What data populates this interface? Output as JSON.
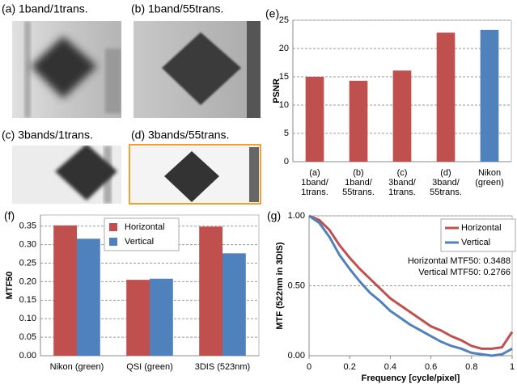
{
  "image_panels": [
    {
      "label": "(a) 1band/1trans."
    },
    {
      "label": "(b) 1band/55trans."
    },
    {
      "label": "(c) 3bands/1trans."
    },
    {
      "label": "(d) 3bands/55trans."
    }
  ],
  "chart_data": [
    {
      "type": "bar",
      "label": "(e)",
      "y_label": "PSNR",
      "categories": [
        "(a)\n1band/\n1trans.",
        "(b)\n1band/\n55trans.",
        "(c)\n3band/\n1trans.",
        "(d)\n3band/\n55trans.",
        "Nikon\n(green)"
      ],
      "values": [
        15.0,
        14.3,
        16.1,
        22.8,
        23.3
      ],
      "colors": [
        "#c0504d",
        "#c0504d",
        "#c0504d",
        "#c0504d",
        "#4f81bd"
      ],
      "ylim": [
        0,
        25
      ],
      "yticks": [
        0,
        5,
        10,
        15,
        20,
        25
      ],
      "grid": true
    },
    {
      "type": "bar",
      "label": "(f)",
      "y_label": "MTF50",
      "categories": [
        "Nikon (green)",
        "QSI (green)",
        "3DIS (523nm)"
      ],
      "series": [
        {
          "name": "Horizontal",
          "color": "#c0504d",
          "values": [
            0.352,
            0.205,
            0.3488
          ]
        },
        {
          "name": "Vertical",
          "color": "#4f81bd",
          "values": [
            0.316,
            0.208,
            0.2766
          ]
        }
      ],
      "ylim": [
        0,
        0.38
      ],
      "yticks": [
        {
          "value": 0,
          "label": "0.00"
        },
        0.05,
        {
          "value": 0.1,
          "label": "0.10"
        },
        0.15,
        {
          "value": 0.2,
          "label": "0.20"
        },
        0.25,
        {
          "value": 0.3,
          "label": "0.30"
        },
        0.35
      ],
      "grid": true,
      "legend": "top-center"
    },
    {
      "type": "line",
      "label": "(g)",
      "x_label": "Frequency [cycle/pixel]",
      "y_label": "MTF (522nm in 3DIS)",
      "x": [
        0,
        0.05,
        0.1,
        0.15,
        0.2,
        0.25,
        0.3,
        0.35,
        0.4,
        0.45,
        0.5,
        0.55,
        0.6,
        0.65,
        0.7,
        0.75,
        0.8,
        0.85,
        0.9,
        0.95,
        1
      ],
      "series": [
        {
          "name": "Horizontal",
          "color": "#c0504d",
          "values": [
            1.0,
            0.97,
            0.9,
            0.79,
            0.7,
            0.62,
            0.55,
            0.48,
            0.41,
            0.36,
            0.31,
            0.26,
            0.21,
            0.18,
            0.14,
            0.11,
            0.07,
            0.05,
            0.05,
            0.06,
            0.17
          ]
        },
        {
          "name": "Vertical",
          "color": "#4f81bd",
          "values": [
            1.0,
            0.95,
            0.85,
            0.72,
            0.62,
            0.53,
            0.45,
            0.39,
            0.32,
            0.27,
            0.22,
            0.18,
            0.14,
            0.1,
            0.07,
            0.05,
            0.02,
            0.01,
            0.0,
            0.01,
            0.05
          ]
        }
      ],
      "annotations": [
        "Horizontal MTF50: 0.3488",
        "Vertical MTF50: 0.2766"
      ],
      "xlim": [
        0,
        1
      ],
      "xticks": [
        0,
        0.2,
        0.4,
        0.6,
        0.8,
        1
      ],
      "ylim": [
        0,
        1
      ],
      "yticks": [
        {
          "value": 0,
          "label": "0.00"
        },
        {
          "value": 0.5,
          "label": "0.50"
        },
        {
          "value": 1,
          "label": "1.00"
        }
      ],
      "grid": true,
      "legend": "top-right"
    }
  ]
}
